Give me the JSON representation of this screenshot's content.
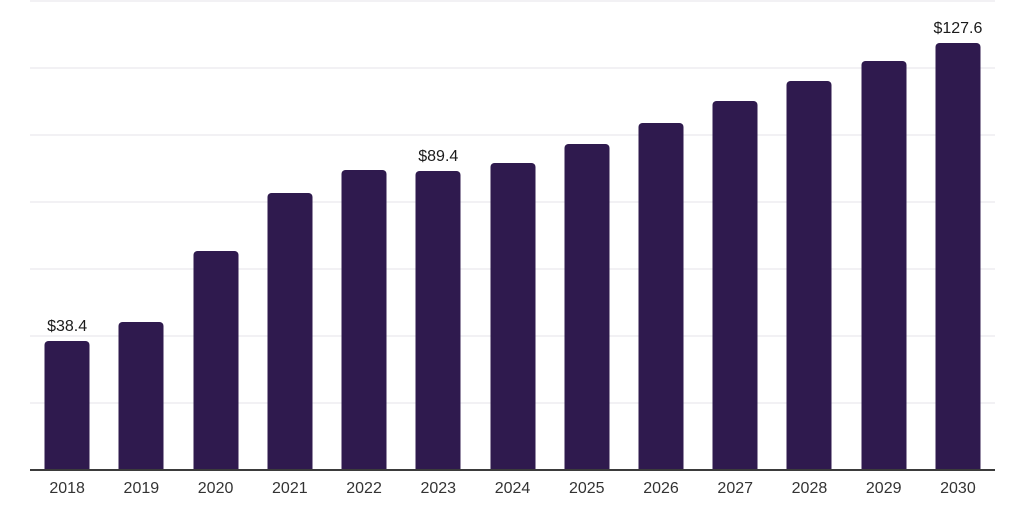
{
  "chart_data": {
    "type": "bar",
    "title": "",
    "subtitle": "",
    "xlabel": "",
    "ylabel": "",
    "categories": [
      "2018",
      "2019",
      "2020",
      "2021",
      "2022",
      "2023",
      "2024",
      "2025",
      "2026",
      "2027",
      "2028",
      "2029",
      "2030"
    ],
    "values": [
      38.4,
      44.3,
      65.4,
      82.6,
      89.5,
      89.4,
      91.8,
      97.3,
      103.5,
      110.2,
      116.2,
      122.2,
      127.6
    ],
    "value_labels": {
      "2018": "$38.4",
      "2023": "$89.4",
      "2030": "$127.6"
    },
    "ylim": [
      0,
      140.3
    ],
    "gridline_values": [
      20,
      40,
      60,
      80,
      100,
      120,
      140
    ],
    "grid": "horizontal-only",
    "legend_position": "none",
    "y_axis_labels_visible": false,
    "colors": {
      "bar": "#2F1A4E",
      "axis": "#3B3B3B",
      "gridline": "#F2F1F4",
      "value_label": "#1B1B1B",
      "tick_label": "#333333",
      "background": "#FFFFFF"
    }
  }
}
